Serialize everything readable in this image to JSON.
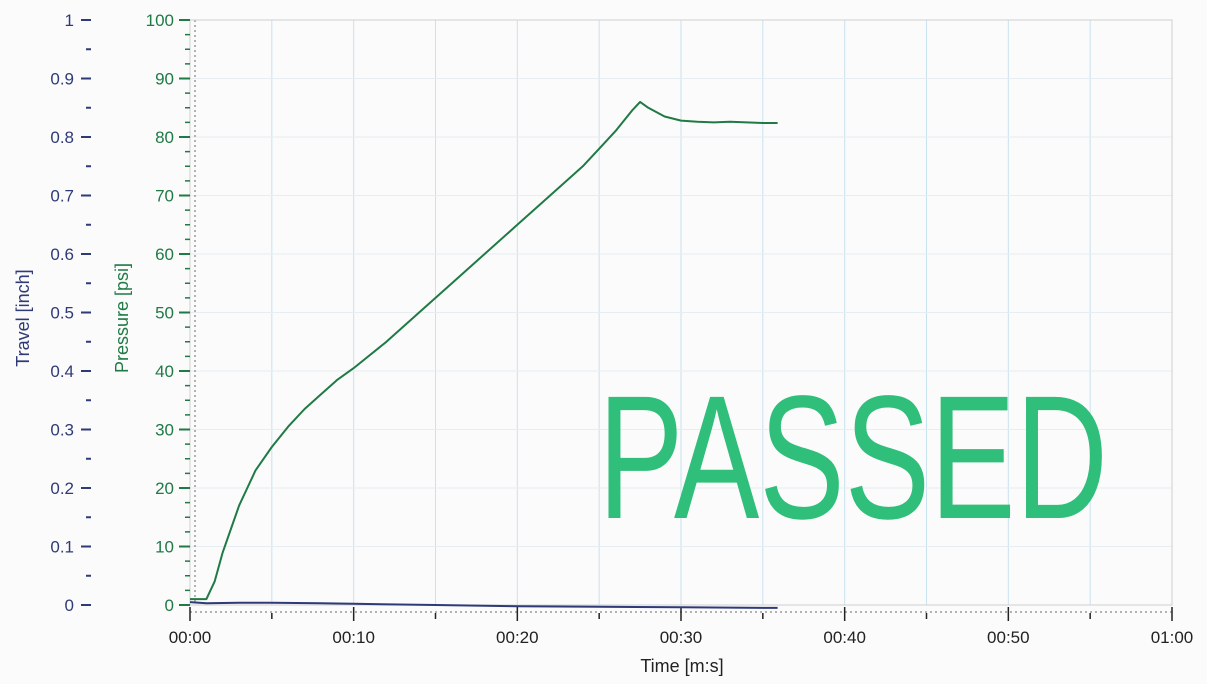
{
  "colors": {
    "travel": "#2f3a78",
    "pressure": "#1f7a45",
    "stamp": "#2fbf7a",
    "grid": "#c9e2f0",
    "frame": "#cfcfcf"
  },
  "stamp_text": "PASSED",
  "chart_data": {
    "type": "line",
    "grid": true,
    "xlabel": "Time [m:s]",
    "x_ticks": [
      "00:00",
      "00:10",
      "00:20",
      "00:30",
      "00:40",
      "00:50",
      "01:00"
    ],
    "xlim": [
      0,
      60
    ],
    "axes": {
      "travel": {
        "label": "Travel [inch]",
        "ylim": [
          0,
          1
        ],
        "ticks": [
          "0",
          "0.1",
          "0.2",
          "0.3",
          "0.4",
          "0.5",
          "0.6",
          "0.7",
          "0.8",
          "0.9",
          "1"
        ]
      },
      "pressure": {
        "label": "Pressure [psi]",
        "ylim": [
          0,
          100
        ],
        "ticks": [
          "0",
          "10",
          "20",
          "30",
          "40",
          "50",
          "60",
          "70",
          "80",
          "90",
          "100"
        ]
      }
    },
    "series": [
      {
        "name": "Pressure [psi]",
        "axis": "pressure",
        "x": [
          0,
          0.5,
          1,
          1.5,
          2,
          2.5,
          3,
          3.5,
          4,
          5,
          6,
          7,
          8,
          9,
          10,
          12,
          14,
          16,
          18,
          20,
          22,
          24,
          25,
          26,
          27,
          27.5,
          28,
          29,
          30,
          31,
          32,
          33,
          34,
          35,
          35.9
        ],
        "y": [
          1,
          1,
          1,
          4,
          9,
          13,
          17,
          20,
          23,
          27,
          30.5,
          33.5,
          36,
          38.5,
          40.5,
          45,
          50,
          55,
          60,
          65,
          70,
          75,
          78,
          81,
          84.5,
          86,
          85,
          83.5,
          82.8,
          82.6,
          82.5,
          82.6,
          82.5,
          82.4,
          82.4
        ]
      },
      {
        "name": "Travel [inch]",
        "axis": "travel",
        "x": [
          0,
          1,
          3,
          5,
          8,
          10,
          15,
          20,
          25,
          30,
          35,
          35.9
        ],
        "y": [
          0.005,
          0.003,
          0.004,
          0.004,
          0.003,
          0.002,
          0.0,
          -0.002,
          -0.003,
          -0.004,
          -0.005,
          -0.005
        ]
      }
    ]
  }
}
